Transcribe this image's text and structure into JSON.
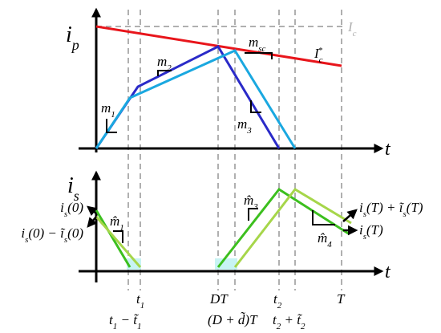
{
  "top_panel": {
    "y_label": [
      {
        "base": "i",
        "sub": "p"
      }
    ],
    "x_label": [
      {
        "base": "t"
      }
    ],
    "ic_label": [
      {
        "base": "I",
        "sub": "c"
      }
    ],
    "ic_star_label": [
      {
        "base": "I",
        "sub": "c",
        "sup": "*"
      }
    ],
    "m1_label": [
      {
        "base": "m",
        "sub": "1"
      }
    ],
    "m2_label": [
      {
        "base": "m",
        "sub": "2"
      }
    ],
    "m3_label": [
      {
        "base": "m",
        "sub": "3"
      }
    ],
    "msc_label": [
      {
        "base": "m",
        "sub": "sc"
      }
    ]
  },
  "bottom_panel": {
    "y_label": [
      {
        "base": "i",
        "sub": "s"
      }
    ],
    "x_label": [
      {
        "base": "t"
      }
    ],
    "is0_label": [
      {
        "base": "i",
        "sub": "s"
      },
      {
        "base": "(0)"
      }
    ],
    "is0_pert_label": [
      {
        "base": "i",
        "sub": "s"
      },
      {
        "base": "(0) − ĩ",
        "sub": "s"
      },
      {
        "base": "(0)"
      }
    ],
    "m1_hat_label": [
      {
        "base": "m̂",
        "sub": "1"
      }
    ],
    "m3_hat_label": [
      {
        "base": "m̂",
        "sub": "3"
      }
    ],
    "m4_hat_label": [
      {
        "base": "m̂",
        "sub": "4"
      }
    ],
    "isT_pert_label": [
      {
        "base": "i",
        "sub": "s"
      },
      {
        "base": "(T) + ĩ",
        "sub": "s"
      },
      {
        "base": "(T)"
      }
    ],
    "isT_label": [
      {
        "base": "i",
        "sub": "s"
      },
      {
        "base": "(T)"
      }
    ]
  },
  "time_labels": {
    "t1": [
      {
        "base": "t",
        "sub": "1"
      }
    ],
    "t1_pert": [
      {
        "base": "t",
        "sub": "1"
      },
      {
        "base": " − t̃",
        "sub": "1"
      }
    ],
    "DT": [
      {
        "base": "DT"
      }
    ],
    "DT_pert": [
      {
        "base": "(D + d̃)T"
      }
    ],
    "t2": [
      {
        "base": "t",
        "sub": "2"
      }
    ],
    "t2_pert": [
      {
        "base": "t",
        "sub": "2"
      },
      {
        "base": " + t̃",
        "sub": "2"
      }
    ],
    "T": [
      {
        "base": "T"
      }
    ]
  }
}
